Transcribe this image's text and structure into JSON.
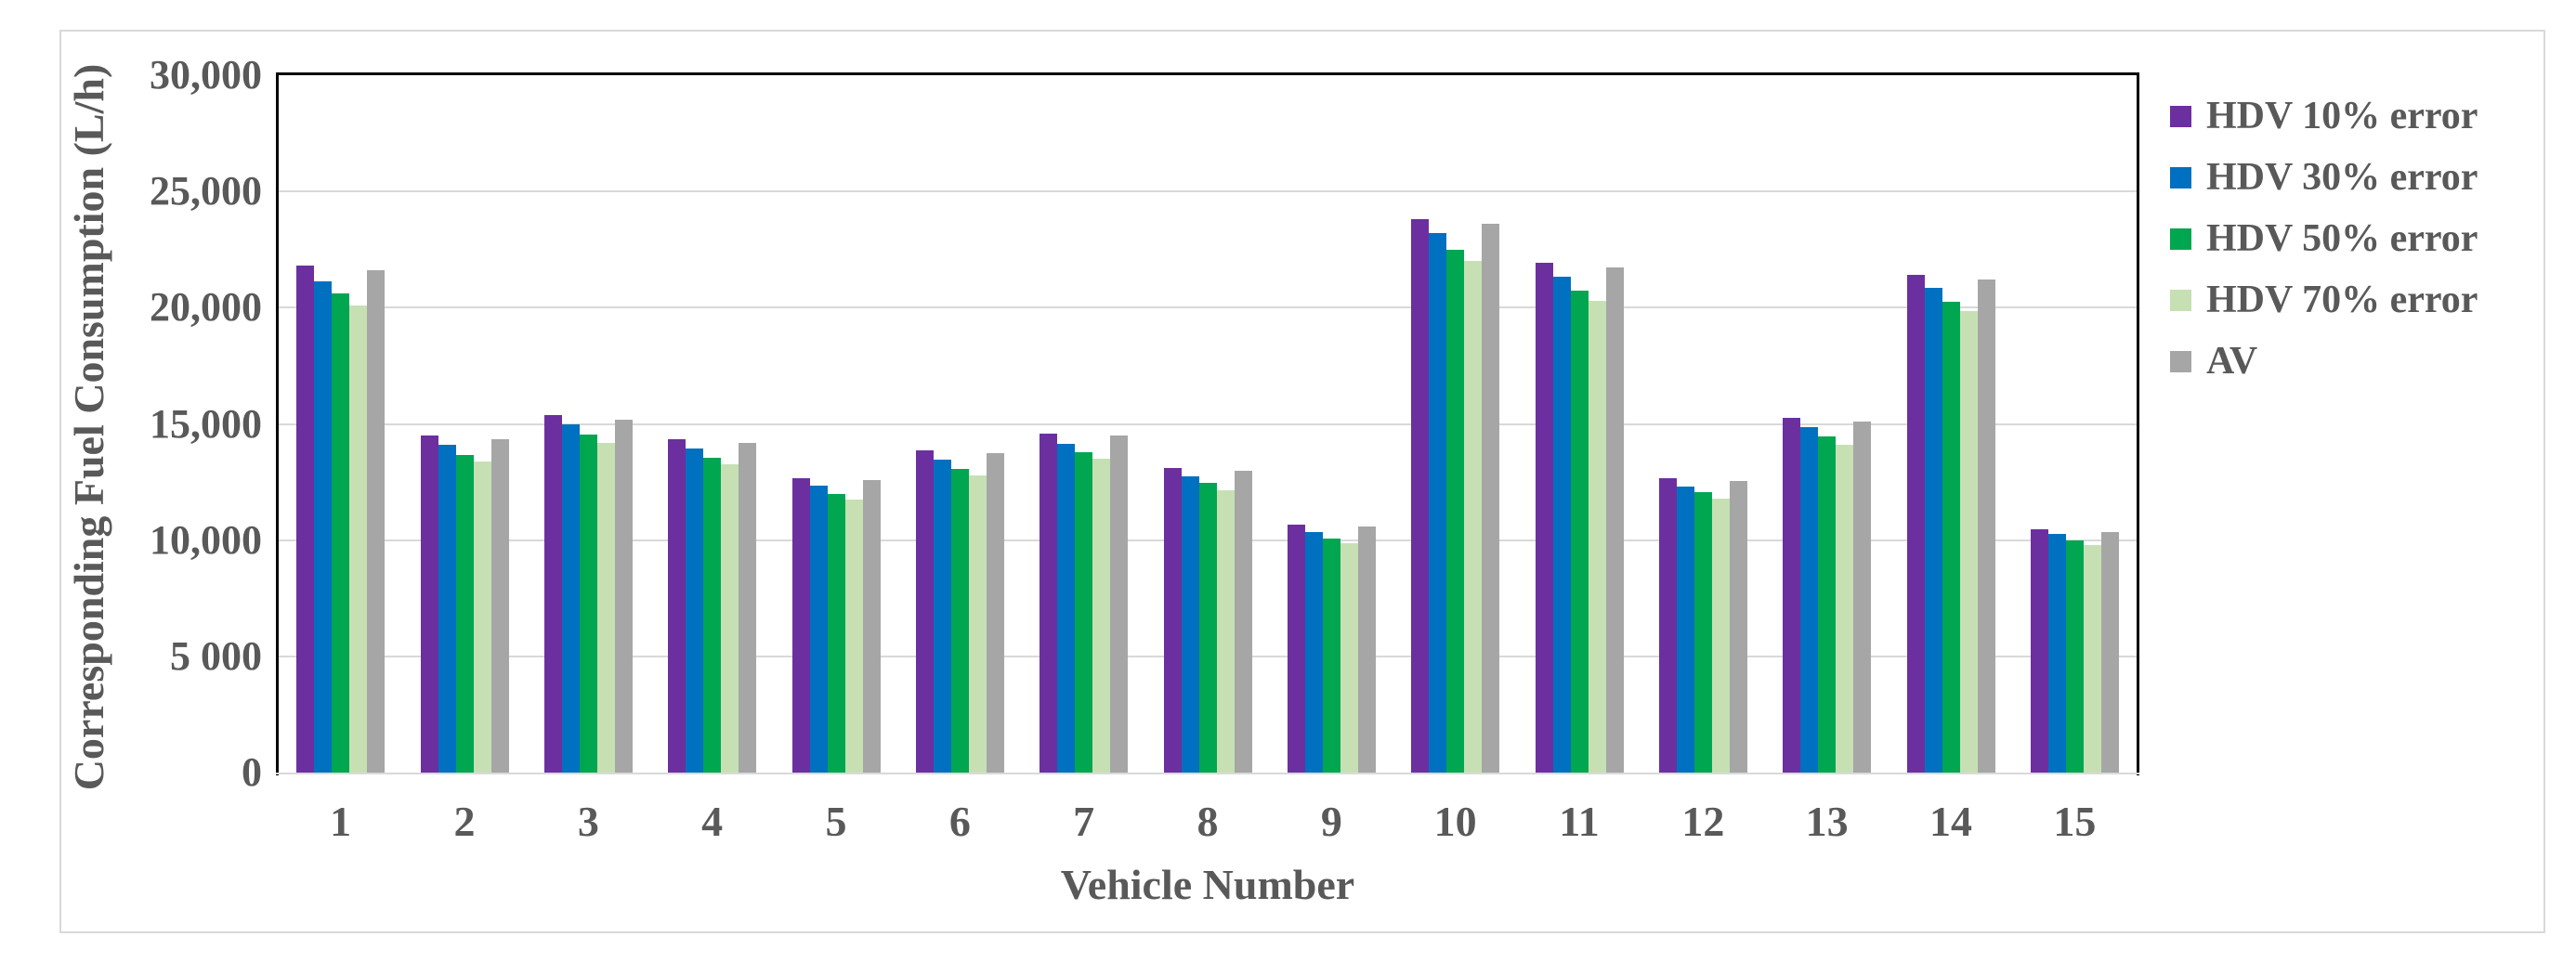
{
  "chart_data": {
    "type": "bar",
    "title": "",
    "xlabel": "Vehicle Number",
    "ylabel": "Corresponding Fuel Consumption (L/h)",
    "ylim": [
      0,
      30000
    ],
    "grid": true,
    "legend_position": "right",
    "axis_text_color": "#595959",
    "gridline_color": "#d9d9d9",
    "plot_border_color": "#000000",
    "yticks": [
      {
        "value": 0,
        "label": "0"
      },
      {
        "value": 5000,
        "label": "5 000"
      },
      {
        "value": 10000,
        "label": "10,000"
      },
      {
        "value": 15000,
        "label": "15,000"
      },
      {
        "value": 20000,
        "label": "20,000"
      },
      {
        "value": 25000,
        "label": "25,000"
      },
      {
        "value": 30000,
        "label": "30,000"
      }
    ],
    "categories": [
      "1",
      "2",
      "3",
      "4",
      "5",
      "6",
      "7",
      "8",
      "9",
      "10",
      "11",
      "12",
      "13",
      "14",
      "15"
    ],
    "series": [
      {
        "name": "HDV 10% error",
        "color": "#6c2fa0",
        "values": [
          21800,
          14500,
          15400,
          14350,
          12650,
          13850,
          14600,
          13100,
          10650,
          23800,
          21950,
          12650,
          15250,
          21400,
          10450
        ]
      },
      {
        "name": "HDV 30% error",
        "color": "#0070c0",
        "values": [
          21150,
          14100,
          15000,
          13950,
          12350,
          13450,
          14150,
          12750,
          10350,
          23200,
          21350,
          12300,
          14850,
          20850,
          10250
        ]
      },
      {
        "name": "HDV 50% error",
        "color": "#00a650",
        "values": [
          20600,
          13650,
          14550,
          13550,
          12000,
          13050,
          13800,
          12450,
          10050,
          22500,
          20750,
          12050,
          14450,
          20250,
          10000
        ]
      },
      {
        "name": "HDV 70% error",
        "color": "#c6e0b4",
        "values": [
          20100,
          13400,
          14200,
          13250,
          11750,
          12800,
          13500,
          12150,
          9850,
          22000,
          20300,
          11800,
          14100,
          19850,
          9800
        ]
      },
      {
        "name": "AV",
        "color": "#a6a6a6",
        "values": [
          21600,
          14350,
          15200,
          14200,
          12600,
          13750,
          14500,
          13000,
          10600,
          23600,
          21750,
          12550,
          15100,
          21200,
          10350
        ]
      }
    ]
  }
}
